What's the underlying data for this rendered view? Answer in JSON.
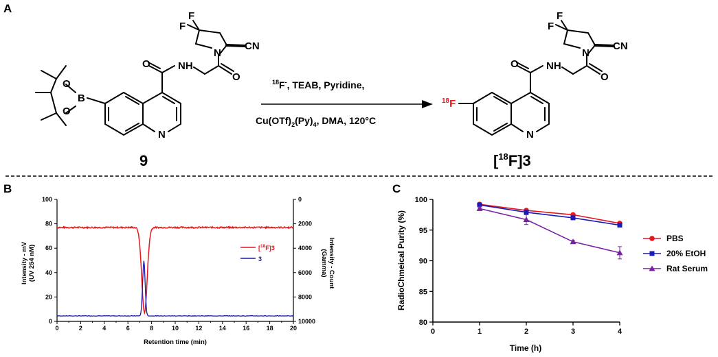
{
  "panels": {
    "a": "A",
    "b": "B",
    "c": "C"
  },
  "scheme": {
    "reactant_label": "9",
    "product_label_sup": "18",
    "product_label_rest": "F]3",
    "product_label_open": "[",
    "conditions_line1_sup": "18",
    "conditions_line1_f": "F",
    "conditions_line1_minus": "-",
    "conditions_line1_rest": ", TEAB, Pyridine,",
    "conditions_line2_a": "Cu(OTf)",
    "conditions_line2_sub1": "2",
    "conditions_line2_b": "(Py)",
    "conditions_line2_sub2": "4",
    "conditions_line2_c": ", DMA, 120°C",
    "atoms": {
      "F": "F",
      "N": "N",
      "CN": "CN",
      "O": "O",
      "B": "B",
      "NH": "NH",
      "H": "H",
      "F18_sup": "18",
      "F18_F": "F"
    }
  },
  "chart_b": {
    "type": "line",
    "xlabel": "Retention time (min)",
    "ylabel_left_1": "Intensity - mV",
    "ylabel_left_2": "(UV 254 nM)",
    "ylabel_right_1": "Intensity - Count",
    "ylabel_right_2": "(Gamma)",
    "xlim": [
      0,
      20
    ],
    "ylim_left": [
      0,
      100
    ],
    "ylim_right_reversed": [
      0,
      10000
    ],
    "x_ticks": [
      "0",
      "2",
      "4",
      "6",
      "8",
      "10",
      "12",
      "14",
      "16",
      "18",
      "20"
    ],
    "y_left_ticks": [
      "0",
      "20",
      "40",
      "60",
      "80",
      "100"
    ],
    "y_right_ticks": [
      "0",
      "2000",
      "4000",
      "6000",
      "8000",
      "10000"
    ],
    "legend": [
      {
        "pre": "[",
        "sup": "18",
        "post": "F]3",
        "color": "#e8151b"
      },
      {
        "pre": "3",
        "sup": "",
        "post": "",
        "color": "#1a1aa8"
      }
    ]
  },
  "chart_data": {
    "type": "line",
    "title": "",
    "xlabel": "Time (h)",
    "ylabel": "RadioChmeical Purity (%)",
    "xlim": [
      0,
      4
    ],
    "ylim": [
      80,
      100
    ],
    "x_ticks": [
      "0",
      "1",
      "2",
      "3",
      "4"
    ],
    "y_ticks": [
      "80",
      "85",
      "90",
      "95",
      "100"
    ],
    "x": [
      1,
      2,
      3,
      4
    ],
    "series": [
      {
        "name": "PBS",
        "values": [
          99.2,
          98.2,
          97.5,
          96.1
        ],
        "errors": [
          0.2,
          0.2,
          0.2,
          0.2
        ],
        "color": "#e8151b",
        "marker": "circle"
      },
      {
        "name": "20% EtOH",
        "values": [
          99.1,
          97.9,
          97.0,
          95.8
        ],
        "errors": [
          0.2,
          0.2,
          0.2,
          0.2
        ],
        "color": "#1a1ab8",
        "marker": "square"
      },
      {
        "name": "Rat Serum",
        "values": [
          98.5,
          96.7,
          93.1,
          91.3
        ],
        "errors": [
          0.3,
          0.8,
          0.2,
          1.0
        ],
        "color": "#7a1fa0",
        "marker": "triangle"
      }
    ],
    "legend_position": "right"
  }
}
